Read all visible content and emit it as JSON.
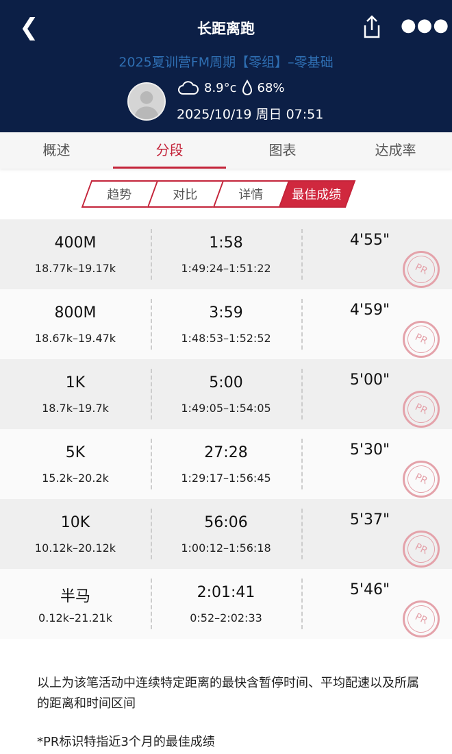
{
  "header": {
    "title": "长距离跑",
    "camp": "2025夏训营FM周期【零组】–零基础",
    "temperature": "8.9°c",
    "humidity": "68%",
    "datetime": "2025/10/19 周日 07:51"
  },
  "tabs": [
    {
      "label": "概述"
    },
    {
      "label": "分段",
      "active": true
    },
    {
      "label": "图表"
    },
    {
      "label": "达成率"
    }
  ],
  "subtabs": [
    {
      "label": "趋势"
    },
    {
      "label": "对比"
    },
    {
      "label": "详情"
    },
    {
      "label": "最佳成绩",
      "active": true
    }
  ],
  "records": [
    {
      "distance": "400M",
      "range": "18.77k–19.17k",
      "time": "1:58",
      "time_range": "1:49:24–1:51:22",
      "pace": "4'55\"",
      "badge": "PR"
    },
    {
      "distance": "800M",
      "range": "18.67k–19.47k",
      "time": "3:59",
      "time_range": "1:48:53–1:52:52",
      "pace": "4'59\"",
      "badge": "PR"
    },
    {
      "distance": "1K",
      "range": "18.7k–19.7k",
      "time": "5:00",
      "time_range": "1:49:05–1:54:05",
      "pace": "5'00\"",
      "badge": "PR"
    },
    {
      "distance": "5K",
      "range": "15.2k–20.2k",
      "time": "27:28",
      "time_range": "1:29:17–1:56:45",
      "pace": "5'30\"",
      "badge": "PR"
    },
    {
      "distance": "10K",
      "range": "10.12k–20.12k",
      "time": "56:06",
      "time_range": "1:00:12–1:56:18",
      "pace": "5'37\"",
      "badge": "PR"
    },
    {
      "distance": "半马",
      "range": "0.12k–21.21k",
      "time": "2:01:41",
      "time_range": "0:52–2:02:33",
      "pace": "5'46\"",
      "badge": "PR"
    }
  ],
  "notes": {
    "line1": "以上为该笔活动中连续特定距离的最快含暂停时间、平均配速以及所属的距离和时间区间",
    "line2": "*PR标识特指近3个月的最佳成绩"
  },
  "colors": {
    "header": "#0c1f46",
    "accent": "#c4243a",
    "camp": "#2f6fb3"
  }
}
